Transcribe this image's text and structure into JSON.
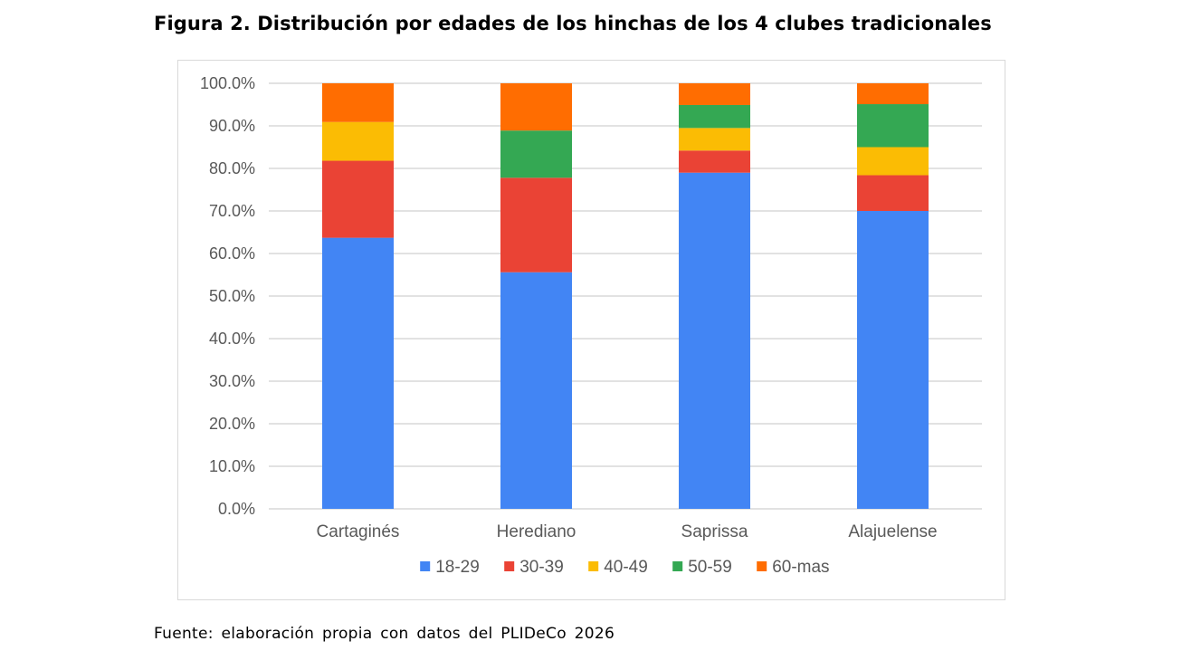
{
  "figure": {
    "title": "Figura 2. Distribución por edades de los hinchas de los 4 clubes tradicionales",
    "source": "Fuente: elaboración propia con datos del PLIDeCo 2026"
  },
  "chart_data": {
    "type": "bar",
    "stacked": true,
    "categories": [
      "Cartaginés",
      "Herediano",
      "Saprissa",
      "Alajuelense"
    ],
    "series": [
      {
        "name": "18-29",
        "color": "#4285f4",
        "values": [
          63.7,
          55.6,
          79.0,
          70.0
        ]
      },
      {
        "name": "30-39",
        "color": "#ea4335",
        "values": [
          18.1,
          22.2,
          5.2,
          8.4
        ]
      },
      {
        "name": "40-49",
        "color": "#fbbc04",
        "values": [
          9.1,
          0.0,
          5.3,
          6.6
        ]
      },
      {
        "name": "50-59",
        "color": "#34a853",
        "values": [
          0.0,
          11.1,
          5.4,
          10.1
        ]
      },
      {
        "name": "60-mas",
        "color": "#ff6d01",
        "values": [
          9.1,
          11.1,
          5.1,
          4.9
        ]
      }
    ],
    "yticks": [
      "0.0%",
      "10.0%",
      "20.0%",
      "30.0%",
      "40.0%",
      "50.0%",
      "60.0%",
      "70.0%",
      "80.0%",
      "90.0%",
      "100.0%"
    ],
    "ylim": [
      0,
      100
    ],
    "grid": true,
    "gridline_color": "#d9d9d9",
    "legend_position": "bottom"
  }
}
